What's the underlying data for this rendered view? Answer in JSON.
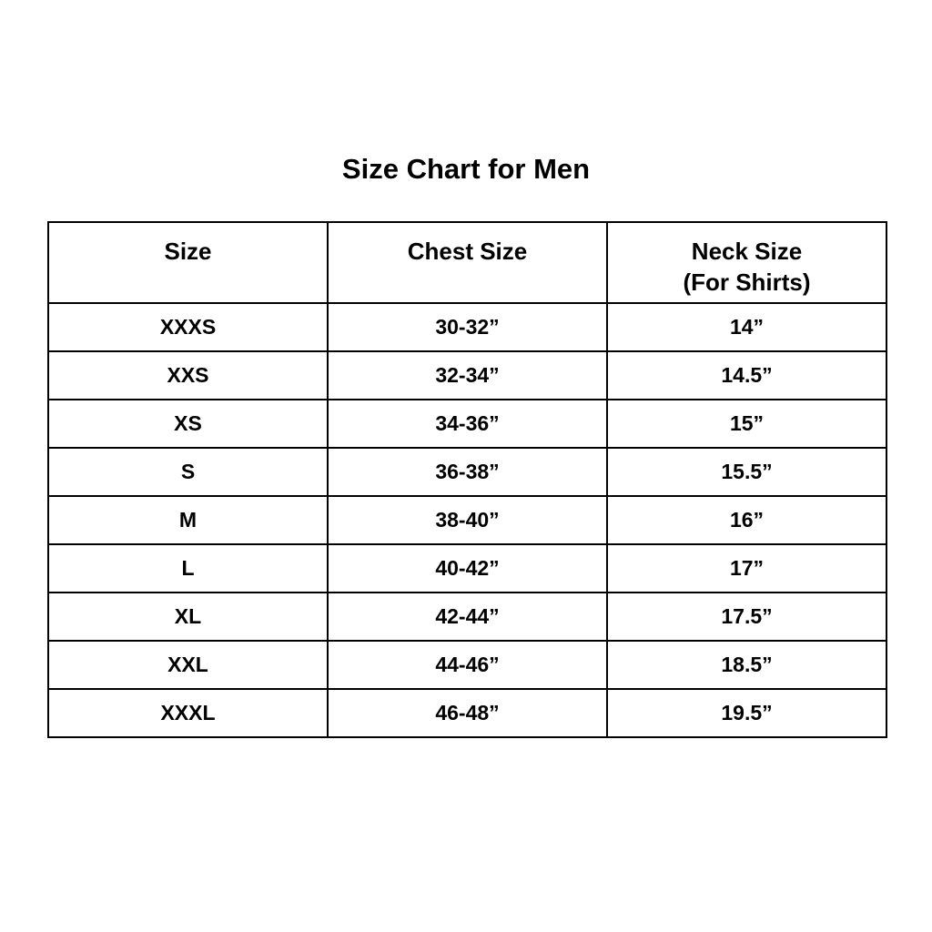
{
  "title": "Size Chart for Men",
  "table": {
    "headers": [
      "Size",
      "Chest Size",
      "Neck Size",
      "(For Shirts)"
    ],
    "rows": [
      [
        "XXXS",
        "30-32”",
        "14”"
      ],
      [
        "XXS",
        "32-34”",
        "14.5”"
      ],
      [
        "XS",
        "34-36”",
        "15”"
      ],
      [
        "S",
        "36-38”",
        "15.5”"
      ],
      [
        "M",
        "38-40”",
        "16”"
      ],
      [
        "L",
        "40-42”",
        "17”"
      ],
      [
        "XL",
        "42-44”",
        "17.5”"
      ],
      [
        "XXL",
        "44-46”",
        "18.5”"
      ],
      [
        "XXXL",
        "46-48”",
        "19.5”"
      ]
    ]
  }
}
